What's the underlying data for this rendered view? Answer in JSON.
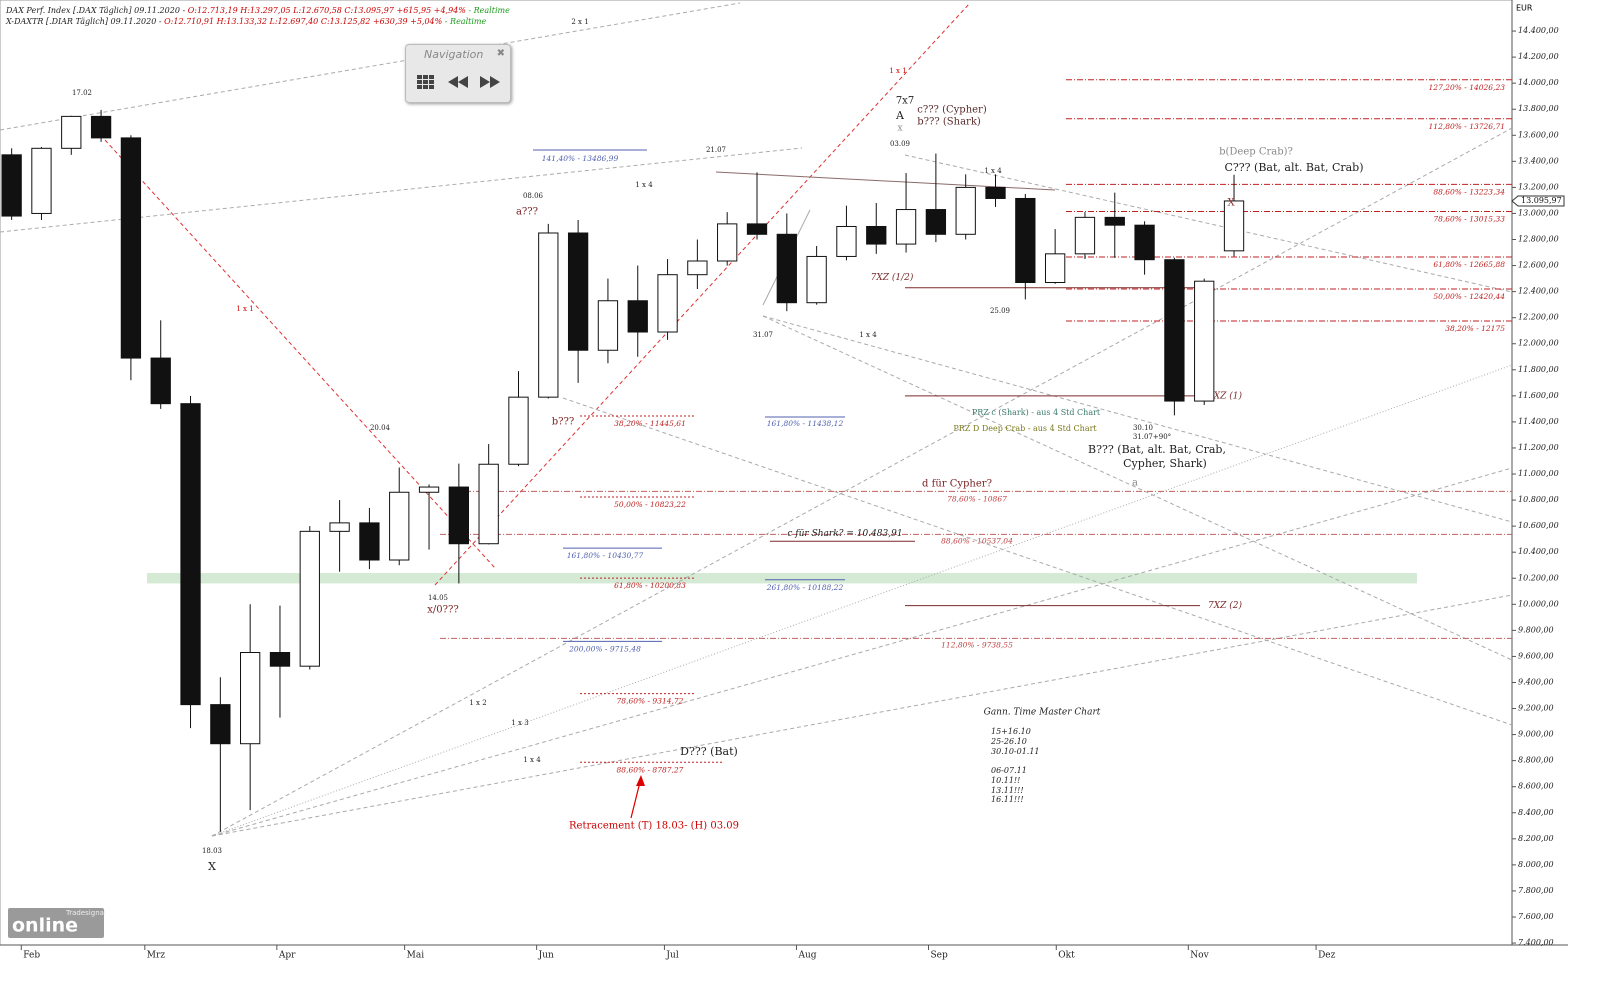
{
  "header": {
    "line1": [
      "DAX Perf. Index [.DAX Täglich] 09.11.2020 -",
      "O:12.713,19 H:13.297,05 L:12.670,58 C:13.095,97 +615,95 +4,94%",
      "- Realtime"
    ],
    "line2": [
      "X-DAXTR [.DIAR Täglich] 09.11.2020 -",
      "O:12.710,91 H:13.133,32 L:12.697,40 C:13.125,82 +630,39 +5,04%",
      "- Realtime"
    ]
  },
  "navigation": {
    "title": "Navigation"
  },
  "logo": {
    "brand": "Tradesignal",
    "name": "online"
  },
  "chart_data": {
    "type": "candlestick",
    "currency": "EUR",
    "x": [
      "2020-01-27",
      "2020-02-03",
      "2020-02-10",
      "2020-02-17",
      "2020-02-24",
      "2020-03-02",
      "2020-03-09",
      "2020-03-16",
      "2020-03-23",
      "2020-03-30",
      "2020-04-06",
      "2020-04-13",
      "2020-04-20",
      "2020-04-27",
      "2020-05-04",
      "2020-05-11",
      "2020-05-18",
      "2020-05-25",
      "2020-06-01",
      "2020-06-08",
      "2020-06-15",
      "2020-06-22",
      "2020-06-29",
      "2020-07-06",
      "2020-07-13",
      "2020-07-20",
      "2020-07-27",
      "2020-08-03",
      "2020-08-10",
      "2020-08-17",
      "2020-08-24",
      "2020-08-31",
      "2020-09-07",
      "2020-09-14",
      "2020-09-21",
      "2020-09-28",
      "2020-10-05",
      "2020-10-12",
      "2020-10-19",
      "2020-10-26",
      "2020-11-02",
      "2020-11-09"
    ],
    "open": [
      13450,
      13000,
      13500,
      13745,
      13580,
      11890,
      11540,
      9230,
      8930,
      9630,
      9525,
      10560,
      10625,
      10340,
      10860,
      10900,
      10465,
      11075,
      11590,
      12850,
      11950,
      12330,
      12090,
      12530,
      12635,
      12920,
      12840,
      12315,
      12670,
      12900,
      12765,
      13030,
      12840,
      13200,
      13115,
      12470,
      12690,
      12970,
      12910,
      12645,
      11560,
      12713.19
    ],
    "high": [
      13500,
      13510,
      13750,
      13795,
      13600,
      12180,
      11600,
      9440,
      10000,
      9990,
      10600,
      10800,
      10740,
      11050,
      10920,
      11080,
      11230,
      11790,
      12920,
      12950,
      12500,
      12600,
      12650,
      12800,
      13010,
      13315,
      13000,
      12750,
      13060,
      13080,
      13310,
      13460,
      13300,
      13300,
      13150,
      12880,
      13010,
      13160,
      12940,
      12660,
      12500,
      13297.05
    ],
    "low": [
      12950,
      12950,
      13450,
      13550,
      11720,
      11500,
      9050,
      8255,
      8420,
      9130,
      9500,
      10250,
      10270,
      10300,
      10420,
      10160,
      10460,
      11060,
      11580,
      11700,
      11850,
      11900,
      12030,
      12420,
      12600,
      12800,
      12250,
      12300,
      12640,
      12690,
      12700,
      12780,
      12800,
      13050,
      12340,
      12460,
      12650,
      12660,
      12530,
      11450,
      11530,
      12670.58
    ],
    "close": [
      12980,
      13500,
      13745,
      13580,
      11890,
      11540,
      9230,
      8930,
      9630,
      9525,
      10560,
      10625,
      10340,
      10860,
      10900,
      10465,
      11075,
      11590,
      12850,
      11950,
      12330,
      12090,
      12530,
      12635,
      12920,
      12840,
      12315,
      12670,
      12900,
      12765,
      13030,
      12840,
      13200,
      13115,
      12470,
      12690,
      12970,
      12910,
      12645,
      11560,
      12480,
      13095.97
    ],
    "up_color": "#ffffff",
    "down_color": "#111111",
    "last_price": {
      "value": 13095.97,
      "label": "13.095,97"
    },
    "xlim": [
      "2020-01-27",
      "2021-01-16"
    ],
    "xticks": [
      {
        "value": "2020-02-01",
        "label": "Feb"
      },
      {
        "value": "2020-03-01",
        "label": "Mrz"
      },
      {
        "value": "2020-04-01",
        "label": "Apr"
      },
      {
        "value": "2020-05-01",
        "label": "Mai"
      },
      {
        "value": "2020-06-01",
        "label": "Jun"
      },
      {
        "value": "2020-07-01",
        "label": "Jul"
      },
      {
        "value": "2020-08-01",
        "label": "Aug"
      },
      {
        "value": "2020-09-01",
        "label": "Sep"
      },
      {
        "value": "2020-10-01",
        "label": "Okt"
      },
      {
        "value": "2020-11-01",
        "label": "Nov"
      },
      {
        "value": "2020-12-01",
        "label": "Dez"
      }
    ],
    "ylim": [
      7385,
      14600
    ],
    "yticks": [
      {
        "value": 7400,
        "label": "7.400,00"
      },
      {
        "value": 7600,
        "label": "7.600,00"
      },
      {
        "value": 7800,
        "label": "7.800,00"
      },
      {
        "value": 8000,
        "label": "8.000,00"
      },
      {
        "value": 8200,
        "label": "8.200,00"
      },
      {
        "value": 8400,
        "label": "8.400,00"
      },
      {
        "value": 8600,
        "label": "8.600,00"
      },
      {
        "value": 8800,
        "label": "8.800,00"
      },
      {
        "value": 9000,
        "label": "9.000,00"
      },
      {
        "value": 9200,
        "label": "9.200,00"
      },
      {
        "value": 9400,
        "label": "9.400,00"
      },
      {
        "value": 9600,
        "label": "9.600,00"
      },
      {
        "value": 9800,
        "label": "9.800,00"
      },
      {
        "value": 10000,
        "label": "10.000,00"
      },
      {
        "value": 10200,
        "label": "10.200,00"
      },
      {
        "value": 10400,
        "label": "10.400,00"
      },
      {
        "value": 10600,
        "label": "10.600,00"
      },
      {
        "value": 10800,
        "label": "10.800,00"
      },
      {
        "value": 11000,
        "label": "11.000,00"
      },
      {
        "value": 11200,
        "label": "11.200,00"
      },
      {
        "value": 11400,
        "label": "11.400,00"
      },
      {
        "value": 11600,
        "label": "11.600,00"
      },
      {
        "value": 11800,
        "label": "11.800,00"
      },
      {
        "value": 12000,
        "label": "12.000,00"
      },
      {
        "value": 12200,
        "label": "12.200,00"
      },
      {
        "value": 12400,
        "label": "12.400,00"
      },
      {
        "value": 12600,
        "label": "12.600,00"
      },
      {
        "value": 12800,
        "label": "12.800,00"
      },
      {
        "value": 13000,
        "label": "13.000,00"
      },
      {
        "value": 13200,
        "label": "13.200,00"
      },
      {
        "value": 13400,
        "label": "13.400,00"
      },
      {
        "value": 13600,
        "label": "13.600,00"
      },
      {
        "value": 13800,
        "label": "13.800,00"
      },
      {
        "value": 14000,
        "label": "14.000,00"
      },
      {
        "value": 14200,
        "label": "14.200,00"
      },
      {
        "value": 14400,
        "label": "14.400,00"
      }
    ],
    "zone": [
      10160,
      10240
    ],
    "zone_color": "#cfe8cf",
    "levels": [
      {
        "value": 14026.23,
        "label": "127,20% - 14026,23"
      },
      {
        "value": 13726.71,
        "label": "112,80% - 13726,71"
      },
      {
        "value": 13223.34,
        "label": "88,60% - 13223,34"
      },
      {
        "value": 13015.33,
        "label": "78,60% - 13015,33"
      },
      {
        "value": 12665.88,
        "label": "61,80% - 12665,88"
      },
      {
        "value": 12420.44,
        "label": "50,00% - 12420,44"
      },
      {
        "value": 12175,
        "label": "38,20% - 12175"
      },
      {
        "value": 11445.61,
        "label": "38,20% - 11445,61"
      },
      {
        "value": 10823.22,
        "label": "50,00% - 10823,22"
      },
      {
        "value": 10200.83,
        "label": "61,80% - 10200,83"
      },
      {
        "value": 9314.72,
        "label": "78,60% - 9314,72"
      },
      {
        "value": 8787.27,
        "label": "88,60% - 8787,27"
      },
      {
        "value": 13486.99,
        "label": "141,40% - 13486,99"
      },
      {
        "value": 11438.12,
        "label": "161,80% - 11438,12"
      },
      {
        "value": 10430.77,
        "label": "161,80% - 10430,77"
      },
      {
        "value": 10188.22,
        "label": "261,80% - 10188,22"
      },
      {
        "value": 9715.48,
        "label": "200,00% - 9715,48"
      },
      {
        "value": 10867,
        "label": "78,60% - 10867"
      },
      {
        "value": 10537.04,
        "label": "88,60% - 10537,04"
      },
      {
        "value": 9738.55,
        "label": "112,80% - 9738,55"
      },
      {
        "value": 12430,
        "label": "7XZ (1/2)"
      },
      {
        "value": 11600,
        "label": "7XZ (1)"
      },
      {
        "value": 9990,
        "label": "7XZ (2)"
      },
      {
        "value": 10483.91,
        "label": "c für Shark? = 10.483,91"
      }
    ],
    "annotations": [
      "17.02",
      "18.03",
      "X",
      "20.04",
      "14.05",
      "x/0???",
      "08.06",
      "a???",
      "b???",
      "21.07",
      "31.07",
      "03.09",
      "7x7",
      "A",
      "x",
      "c??? (Cypher)",
      "b??? (Shark)",
      "25.09",
      "30.10",
      "31.07+90°",
      "B??? (Bat, alt. Bat, Crab,",
      "Cypher, Shark)",
      "a",
      "b(Deep Crab)?",
      "C??? (Bat, alt. Bat, Crab)",
      "X",
      "d für Cypher?",
      "PRZ c (Shark) - aus 4 Std Chart",
      "PRZ D Deep Crab - aus 4 Std Chart",
      "D??? (Bat)",
      "Retracement (T) 18.03- (H) 03.09",
      "Gann. Time Master Chart",
      "15+16.10",
      "25-26.10",
      "30.10-01.11",
      "06-07.11",
      "10.11!!",
      "13.11!!!",
      "16.11!!!",
      "1 x 1",
      "1 x 1",
      "2 x 1",
      "1 x 4",
      "1 x 4",
      "1 x 4",
      "1 x 4",
      "1 x 2",
      "1 x 3"
    ]
  }
}
